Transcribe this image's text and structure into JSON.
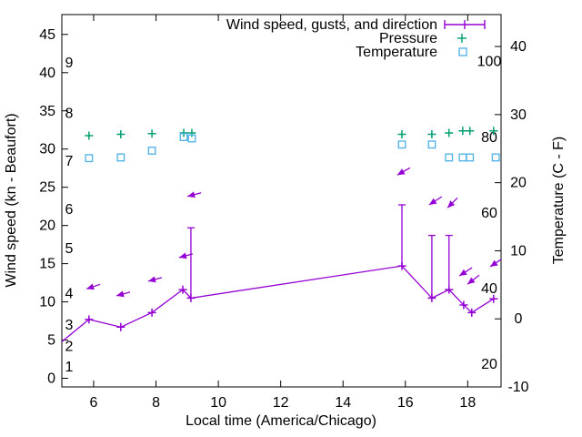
{
  "chart_data": {
    "type": "line",
    "x_axis": {
      "label": "Local time (America/Chicago)",
      "range": [
        4.979,
        19.07
      ],
      "ticks": [
        6,
        8,
        10,
        12,
        14,
        16,
        18
      ]
    },
    "y_axis_left": {
      "label": "Wind speed (kn - Beaufort)",
      "range": [
        -1.13,
        47.6
      ],
      "ticks": [
        0,
        5,
        10,
        15,
        20,
        25,
        30,
        35,
        40,
        45
      ]
    },
    "y_axis_right": {
      "label": "Temperature (C - F)",
      "range": [
        -10,
        44.69
      ],
      "ticks": [
        -10,
        0,
        10,
        20,
        30,
        40
      ]
    },
    "beaufort_scale_labels": [
      {
        "label": "1",
        "kn": 1.5
      },
      {
        "label": "2",
        "kn": 4.2
      },
      {
        "label": "3",
        "kn": 7.0
      },
      {
        "label": "4",
        "kn": 11.1
      },
      {
        "label": "5",
        "kn": 17.0
      },
      {
        "label": "6",
        "kn": 22.1
      },
      {
        "label": "7",
        "kn": 28.4
      },
      {
        "label": "8",
        "kn": 34.7
      },
      {
        "label": "9",
        "kn": 41.3
      }
    ],
    "fahrenheit_scale_labels": [
      {
        "label": "20",
        "c": -6.67
      },
      {
        "label": "40",
        "c": 4.44
      },
      {
        "label": "60",
        "c": 15.56
      },
      {
        "label": "80",
        "c": 26.67
      },
      {
        "label": "100",
        "c": 37.78
      }
    ],
    "legend": [
      {
        "label": "Wind speed, gusts, and direction",
        "marker": "errorbar-line",
        "color": "#9400d3"
      },
      {
        "label": "Pressure",
        "marker": "plus",
        "color": "#009e73"
      },
      {
        "label": "Temperature",
        "marker": "open-square",
        "color": "#56b4e9"
      }
    ],
    "series": {
      "wind": {
        "name": "Wind speed, gusts, and direction",
        "color": "#9400d3",
        "style": "line with plus markers and gust error bars (kn, left axis)",
        "points": [
          {
            "t": 4.98,
            "kn": 4.8,
            "edge": true
          },
          {
            "t": 5.85,
            "kn": 7.7
          },
          {
            "t": 6.87,
            "kn": 6.7
          },
          {
            "t": 7.87,
            "kn": 8.6
          },
          {
            "t": 8.86,
            "kn": 11.6
          },
          {
            "t": 9.12,
            "kn": 10.5,
            "gust": 19.7
          },
          {
            "t": 15.89,
            "kn": 14.7,
            "gust": 22.7
          },
          {
            "t": 16.85,
            "kn": 10.5,
            "gust": 18.7
          },
          {
            "t": 17.4,
            "kn": 11.6,
            "gust": 18.7
          },
          {
            "t": 17.87,
            "kn": 9.6
          },
          {
            "t": 18.13,
            "kn": 8.6
          },
          {
            "t": 18.83,
            "kn": 10.4
          }
        ]
      },
      "wind_direction_arrows": {
        "color": "#9400d3",
        "style": "small arrows pointing down-left above each wind point",
        "arrows": [
          {
            "t": 5.77,
            "kn": 11.7,
            "tail_dx": 15,
            "tail_dy": -5
          },
          {
            "t": 6.73,
            "kn": 10.8,
            "tail_dx": 15,
            "tail_dy": -4
          },
          {
            "t": 7.75,
            "kn": 12.7,
            "tail_dx": 15,
            "tail_dy": -4
          },
          {
            "t": 8.74,
            "kn": 15.8,
            "tail_dx": 15,
            "tail_dy": -4
          },
          {
            "t": 9.01,
            "kn": 23.8,
            "tail_dx": 15,
            "tail_dy": -4
          },
          {
            "t": 15.74,
            "kn": 26.6,
            "tail_dx": 14,
            "tail_dy": -8
          },
          {
            "t": 16.76,
            "kn": 22.7,
            "tail_dx": 14,
            "tail_dy": -9
          },
          {
            "t": 17.35,
            "kn": 22.3,
            "tail_dx": 11,
            "tail_dy": -11
          },
          {
            "t": 17.73,
            "kn": 13.4,
            "tail_dx": 14,
            "tail_dy": -9
          },
          {
            "t": 17.99,
            "kn": 12.3,
            "tail_dx": 13,
            "tail_dy": -10
          },
          {
            "t": 18.72,
            "kn": 14.6,
            "tail_dx": 12,
            "tail_dy": -8
          }
        ]
      },
      "pressure": {
        "name": "Pressure",
        "color": "#009e73",
        "marker": "plus",
        "points": [
          {
            "t": 5.85,
            "c": 26.9
          },
          {
            "t": 6.87,
            "c": 27.1
          },
          {
            "t": 7.87,
            "c": 27.2
          },
          {
            "t": 8.89,
            "c": 27.3
          },
          {
            "t": 9.15,
            "c": 27.3
          },
          {
            "t": 15.89,
            "c": 27.1
          },
          {
            "t": 16.85,
            "c": 27.1
          },
          {
            "t": 17.4,
            "c": 27.3
          },
          {
            "t": 17.84,
            "c": 27.6
          },
          {
            "t": 18.07,
            "c": 27.6
          },
          {
            "t": 18.83,
            "c": 27.6
          }
        ]
      },
      "temperature": {
        "name": "Temperature",
        "color": "#56b4e9",
        "marker": "open-square",
        "points": [
          {
            "t": 5.85,
            "c": 23.6
          },
          {
            "t": 6.87,
            "c": 23.7
          },
          {
            "t": 7.87,
            "c": 24.7
          },
          {
            "t": 8.89,
            "c": 26.7
          },
          {
            "t": 9.15,
            "c": 26.5
          },
          {
            "t": 15.89,
            "c": 25.6
          },
          {
            "t": 16.85,
            "c": 25.6
          },
          {
            "t": 17.4,
            "c": 23.7
          },
          {
            "t": 17.84,
            "c": 23.7
          },
          {
            "t": 18.07,
            "c": 23.7
          },
          {
            "t": 18.9,
            "c": 23.7
          }
        ]
      }
    }
  }
}
